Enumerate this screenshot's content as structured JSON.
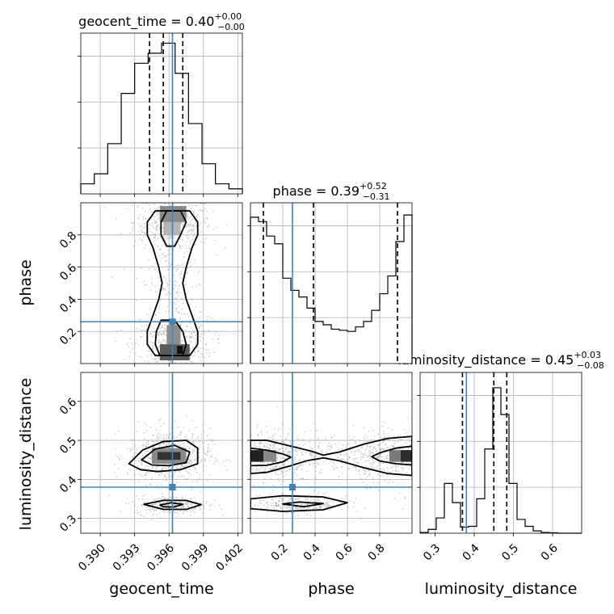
{
  "chart_data": {
    "type": "corner",
    "parameters": [
      "geocent_time",
      "phase",
      "luminosity_distance"
    ],
    "truth": {
      "geocent_time": 0.3963,
      "phase": 0.26,
      "luminosity_distance": 0.38
    },
    "truth_color": "#4682b4",
    "grid": true,
    "panels": {
      "hist_geocent_time": {
        "title": {
          "param": "geocent_time",
          "median": "0.40",
          "plus": "+0.00",
          "minus": "−0.00"
        },
        "xlim": [
          0.3883,
          0.4024
        ],
        "quantiles": [
          0.3943,
          0.3955,
          0.3972
        ],
        "bin_edges": [
          0.3883,
          0.38948,
          0.39065,
          0.39183,
          0.393,
          0.39418,
          0.39535,
          0.39653,
          0.3977,
          0.39888,
          0.40005,
          0.40123,
          0.4024
        ],
        "counts": [
          1,
          2,
          5,
          10,
          13,
          14,
          15,
          12,
          7,
          3,
          1,
          0.5
        ],
        "ymax": 16
      },
      "hist_phase": {
        "title": {
          "param": "phase",
          "median": "0.39",
          "plus": "+0.52",
          "minus": "−0.31"
        },
        "xlim": [
          0.0,
          1.0
        ],
        "quantiles": [
          0.08,
          0.39,
          0.91
        ],
        "bin_edges": [
          0.0,
          0.05,
          0.1,
          0.15,
          0.2,
          0.25,
          0.3,
          0.35,
          0.4,
          0.45,
          0.5,
          0.55,
          0.6,
          0.65,
          0.7,
          0.75,
          0.8,
          0.85,
          0.9,
          0.95,
          1.0
        ],
        "counts": [
          13.2,
          12.8,
          11.5,
          10.8,
          7.7,
          6.6,
          6.0,
          5.0,
          3.8,
          3.5,
          3.1,
          3.0,
          2.9,
          3.3,
          3.8,
          4.8,
          6.3,
          7.9,
          11.0,
          13.4
        ],
        "ymax": 14.5
      },
      "hist_luminosity_distance": {
        "title": {
          "param": "luminosity_distance",
          "median": "0.45",
          "plus": "+0.03",
          "minus": "−0.08"
        },
        "xlim": [
          0.262,
          0.674
        ],
        "quantiles": [
          0.37,
          0.45,
          0.483
        ],
        "bin_edges": [
          0.262,
          0.2826,
          0.3032,
          0.3238,
          0.3444,
          0.365,
          0.3856,
          0.4062,
          0.4268,
          0.4474,
          0.468,
          0.4886,
          0.5092,
          0.5298,
          0.5504,
          0.571,
          0.5916,
          0.6122,
          0.6328,
          0.6534,
          0.674
        ],
        "counts": [
          0.1,
          0.5,
          2.0,
          6.5,
          4.0,
          0.8,
          0.9,
          4.5,
          11.0,
          19.0,
          15.5,
          6.5,
          1.8,
          0.9,
          0.3,
          0.1,
          0.05,
          0,
          0,
          0
        ],
        "ymax": 21
      },
      "scatter_phase_vs_geocent_time": {
        "xlim": [
          0.3883,
          0.4024
        ],
        "ylim": [
          0.0,
          1.0
        ],
        "levels": [
          [
            [
              0.3948,
              0.95
            ],
            [
              0.3978,
              0.95
            ],
            [
              0.3985,
              0.88
            ],
            [
              0.3985,
              0.8
            ],
            [
              0.398,
              0.72
            ],
            [
              0.3975,
              0.6
            ],
            [
              0.3972,
              0.5
            ],
            [
              0.3975,
              0.4
            ],
            [
              0.398,
              0.3
            ],
            [
              0.3985,
              0.2
            ],
            [
              0.3985,
              0.12
            ],
            [
              0.3978,
              0.05
            ],
            [
              0.3948,
              0.05
            ],
            [
              0.3941,
              0.12
            ],
            [
              0.3941,
              0.2
            ],
            [
              0.3946,
              0.3
            ],
            [
              0.3951,
              0.4
            ],
            [
              0.3954,
              0.5
            ],
            [
              0.3951,
              0.6
            ],
            [
              0.3946,
              0.72
            ],
            [
              0.3941,
              0.8
            ],
            [
              0.3941,
              0.88
            ]
          ],
          [
            [
              0.3958,
              0.95
            ],
            [
              0.397,
              0.95
            ],
            [
              0.3975,
              0.88
            ],
            [
              0.397,
              0.8
            ],
            [
              0.3965,
              0.73
            ],
            [
              0.3958,
              0.73
            ],
            [
              0.3953,
              0.8
            ],
            [
              0.3953,
              0.88
            ]
          ],
          [
            [
              0.3953,
              0.27
            ],
            [
              0.3965,
              0.27
            ],
            [
              0.3972,
              0.2
            ],
            [
              0.3975,
              0.12
            ],
            [
              0.3972,
              0.05
            ],
            [
              0.3952,
              0.05
            ],
            [
              0.3948,
              0.12
            ],
            [
              0.3949,
              0.2
            ]
          ]
        ]
      },
      "scatter_luminosity_distance_vs_geocent_time": {
        "xlim": [
          0.3883,
          0.4024
        ],
        "ylim": [
          0.262,
          0.674
        ],
        "levels": [
          [
            [
              0.3925,
              0.44
            ],
            [
              0.3937,
              0.475
            ],
            [
              0.3955,
              0.497
            ],
            [
              0.3975,
              0.5
            ],
            [
              0.3985,
              0.48
            ],
            [
              0.3985,
              0.44
            ],
            [
              0.397,
              0.425
            ],
            [
              0.395,
              0.42
            ],
            [
              0.3935,
              0.425
            ]
          ],
          [
            [
              0.3936,
              0.45
            ],
            [
              0.3948,
              0.478
            ],
            [
              0.3965,
              0.487
            ],
            [
              0.3978,
              0.47
            ],
            [
              0.3975,
              0.443
            ],
            [
              0.396,
              0.435
            ],
            [
              0.3945,
              0.437
            ]
          ],
          [
            [
              0.3938,
              0.336
            ],
            [
              0.3955,
              0.346
            ],
            [
              0.3975,
              0.346
            ],
            [
              0.3988,
              0.335
            ],
            [
              0.3975,
              0.323
            ],
            [
              0.3955,
              0.323
            ]
          ],
          [
            [
              0.3952,
              0.334
            ],
            [
              0.3962,
              0.34
            ],
            [
              0.3972,
              0.336
            ],
            [
              0.3964,
              0.329
            ],
            [
              0.3955,
              0.33
            ]
          ]
        ]
      },
      "scatter_luminosity_distance_vs_phase": {
        "xlim": [
          0.0,
          1.0
        ],
        "ylim": [
          0.262,
          0.674
        ],
        "levels": [
          [
            [
              0.0,
              0.5
            ],
            [
              0.1,
              0.5
            ],
            [
              0.25,
              0.485
            ],
            [
              0.38,
              0.472
            ],
            [
              0.45,
              0.462
            ],
            [
              0.55,
              0.47
            ],
            [
              0.7,
              0.49
            ],
            [
              0.85,
              0.505
            ],
            [
              1.0,
              0.51
            ],
            [
              1.0,
              0.41
            ],
            [
              0.85,
              0.415
            ],
            [
              0.7,
              0.43
            ],
            [
              0.55,
              0.448
            ],
            [
              0.45,
              0.455
            ],
            [
              0.35,
              0.448
            ],
            [
              0.25,
              0.435
            ],
            [
              0.1,
              0.418
            ],
            [
              0.0,
              0.415
            ]
          ],
          [
            [
              0.0,
              0.48
            ],
            [
              0.1,
              0.475
            ],
            [
              0.2,
              0.465
            ],
            [
              0.25,
              0.457
            ],
            [
              0.2,
              0.445
            ],
            [
              0.1,
              0.436
            ],
            [
              0.0,
              0.435
            ]
          ],
          [
            [
              1.0,
              0.485
            ],
            [
              0.9,
              0.48
            ],
            [
              0.8,
              0.468
            ],
            [
              0.75,
              0.458
            ],
            [
              0.8,
              0.447
            ],
            [
              0.9,
              0.44
            ],
            [
              1.0,
              0.437
            ]
          ],
          [
            [
              0.0,
              0.35
            ],
            [
              0.2,
              0.358
            ],
            [
              0.45,
              0.355
            ],
            [
              0.6,
              0.34
            ],
            [
              0.45,
              0.322
            ],
            [
              0.2,
              0.318
            ],
            [
              0.0,
              0.325
            ]
          ],
          [
            [
              0.2,
              0.337
            ],
            [
              0.3,
              0.342
            ],
            [
              0.45,
              0.338
            ],
            [
              0.33,
              0.33
            ]
          ]
        ]
      }
    },
    "axes": {
      "geocent_time": {
        "label": "geocent_time",
        "ticks": [
          0.39,
          0.393,
          0.396,
          0.399,
          0.402
        ],
        "tick_labels": [
          "0.390",
          "0.393",
          "0.396",
          "0.399",
          "0.402"
        ]
      },
      "phase": {
        "label": "phase",
        "ticks": [
          0.2,
          0.4,
          0.6,
          0.8
        ],
        "tick_labels": [
          "0.2",
          "0.4",
          "0.6",
          "0.8"
        ]
      },
      "luminosity_distance": {
        "label": "luminosity_distance",
        "ticks": [
          0.3,
          0.4,
          0.5,
          0.6
        ],
        "tick_labels": [
          "0.3",
          "0.4",
          "0.5",
          "0.6"
        ]
      }
    }
  }
}
